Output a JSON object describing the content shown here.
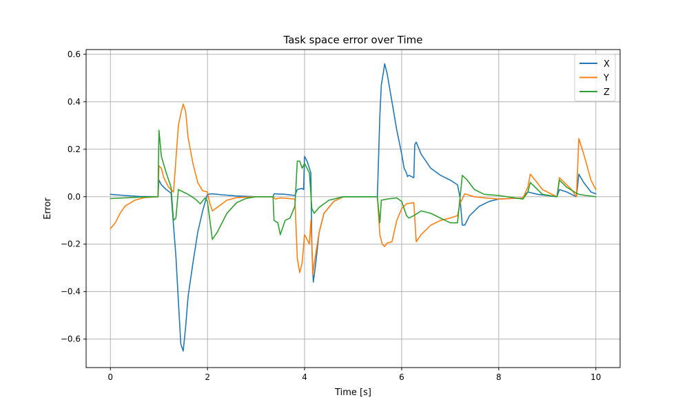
{
  "chart_data": {
    "type": "line",
    "title": "Task space error over Time",
    "xlabel": "Time [s]",
    "ylabel": "Error",
    "xlim": [
      -0.5,
      10.5
    ],
    "ylim": [
      -0.72,
      0.62
    ],
    "xticks": [
      0,
      2,
      4,
      6,
      8,
      10
    ],
    "xtick_labels": [
      "0",
      "2",
      "4",
      "6",
      "8",
      "10"
    ],
    "yticks": [
      -0.6,
      -0.4,
      -0.2,
      0.0,
      0.2,
      0.4,
      0.6
    ],
    "ytick_labels": [
      "−0.6",
      "−0.4",
      "−0.2",
      "0.0",
      "0.2",
      "0.4",
      "0.6"
    ],
    "grid": true,
    "legend_position": "top-right",
    "series": [
      {
        "name": "X",
        "color": "#1f77b4",
        "points": [
          [
            0,
            0.01
          ],
          [
            0.3,
            0.005
          ],
          [
            0.6,
            0.001
          ],
          [
            0.98,
            0.0
          ],
          [
            1.0,
            0.07
          ],
          [
            1.05,
            0.05
          ],
          [
            1.15,
            0.03
          ],
          [
            1.25,
            0.015
          ],
          [
            1.3,
            -0.12
          ],
          [
            1.35,
            -0.25
          ],
          [
            1.4,
            -0.44
          ],
          [
            1.45,
            -0.62
          ],
          [
            1.5,
            -0.65
          ],
          [
            1.55,
            -0.55
          ],
          [
            1.6,
            -0.42
          ],
          [
            1.7,
            -0.28
          ],
          [
            1.8,
            -0.15
          ],
          [
            1.9,
            -0.06
          ],
          [
            1.97,
            -0.01
          ],
          [
            2.0,
            0.01
          ],
          [
            2.1,
            0.012
          ],
          [
            2.3,
            0.008
          ],
          [
            2.6,
            0.003
          ],
          [
            3.0,
            0.0
          ],
          [
            3.35,
            0.0
          ],
          [
            3.37,
            0.012
          ],
          [
            3.6,
            0.01
          ],
          [
            3.8,
            0.005
          ],
          [
            3.85,
            0.03
          ],
          [
            3.95,
            0.035
          ],
          [
            3.98,
            0.03
          ],
          [
            4.0,
            0.17
          ],
          [
            4.05,
            0.15
          ],
          [
            4.1,
            0.12
          ],
          [
            4.13,
            0.1
          ],
          [
            4.15,
            -0.2
          ],
          [
            4.18,
            -0.36
          ],
          [
            4.22,
            -0.3
          ],
          [
            4.3,
            -0.15
          ],
          [
            4.4,
            -0.07
          ],
          [
            4.6,
            -0.02
          ],
          [
            4.8,
            0.0
          ],
          [
            5.5,
            0.0
          ],
          [
            5.53,
            0.2
          ],
          [
            5.55,
            0.34
          ],
          [
            5.58,
            0.47
          ],
          [
            5.62,
            0.52
          ],
          [
            5.65,
            0.56
          ],
          [
            5.7,
            0.52
          ],
          [
            5.8,
            0.4
          ],
          [
            5.9,
            0.28
          ],
          [
            6.0,
            0.18
          ],
          [
            6.05,
            0.12
          ],
          [
            6.1,
            0.1
          ],
          [
            6.12,
            0.085
          ],
          [
            6.15,
            0.09
          ],
          [
            6.25,
            0.08
          ],
          [
            6.27,
            0.22
          ],
          [
            6.3,
            0.23
          ],
          [
            6.4,
            0.18
          ],
          [
            6.6,
            0.12
          ],
          [
            6.8,
            0.09
          ],
          [
            7.0,
            0.07
          ],
          [
            7.15,
            0.05
          ],
          [
            7.2,
            0.0
          ],
          [
            7.25,
            -0.12
          ],
          [
            7.3,
            -0.12
          ],
          [
            7.4,
            -0.08
          ],
          [
            7.6,
            -0.04
          ],
          [
            7.8,
            -0.02
          ],
          [
            8.0,
            -0.01
          ],
          [
            8.5,
            -0.005
          ],
          [
            8.55,
            0.01
          ],
          [
            8.6,
            0.02
          ],
          [
            8.8,
            0.01
          ],
          [
            9.2,
            0.0
          ],
          [
            9.25,
            0.03
          ],
          [
            9.4,
            0.02
          ],
          [
            9.6,
            0.0
          ],
          [
            9.65,
            0.095
          ],
          [
            9.75,
            0.06
          ],
          [
            9.9,
            0.02
          ],
          [
            10.0,
            0.012
          ]
        ]
      },
      {
        "name": "Y",
        "color": "#ff7f0e",
        "points": [
          [
            0,
            -0.135
          ],
          [
            0.1,
            -0.11
          ],
          [
            0.2,
            -0.07
          ],
          [
            0.3,
            -0.04
          ],
          [
            0.5,
            -0.015
          ],
          [
            0.7,
            -0.004
          ],
          [
            0.98,
            0.0
          ],
          [
            1.0,
            0.13
          ],
          [
            1.05,
            0.12
          ],
          [
            1.1,
            0.08
          ],
          [
            1.2,
            0.04
          ],
          [
            1.3,
            0.02
          ],
          [
            1.33,
            0.1
          ],
          [
            1.4,
            0.3
          ],
          [
            1.45,
            0.35
          ],
          [
            1.5,
            0.39
          ],
          [
            1.55,
            0.36
          ],
          [
            1.6,
            0.25
          ],
          [
            1.7,
            0.14
          ],
          [
            1.8,
            0.06
          ],
          [
            1.9,
            0.025
          ],
          [
            2.0,
            0.02
          ],
          [
            2.05,
            -0.03
          ],
          [
            2.1,
            -0.06
          ],
          [
            2.2,
            -0.045
          ],
          [
            2.4,
            -0.015
          ],
          [
            2.6,
            -0.004
          ],
          [
            3.0,
            0.0
          ],
          [
            3.35,
            0.0
          ],
          [
            3.4,
            -0.01
          ],
          [
            3.5,
            -0.005
          ],
          [
            3.8,
            -0.01
          ],
          [
            3.85,
            -0.26
          ],
          [
            3.9,
            -0.32
          ],
          [
            3.95,
            -0.28
          ],
          [
            4.0,
            -0.16
          ],
          [
            4.05,
            -0.18
          ],
          [
            4.1,
            -0.2
          ],
          [
            4.13,
            -0.1
          ],
          [
            4.17,
            -0.33
          ],
          [
            4.2,
            -0.28
          ],
          [
            4.3,
            -0.15
          ],
          [
            4.4,
            -0.07
          ],
          [
            4.6,
            -0.02
          ],
          [
            4.8,
            0.0
          ],
          [
            5.5,
            0.0
          ],
          [
            5.55,
            -0.16
          ],
          [
            5.6,
            -0.2
          ],
          [
            5.65,
            -0.21
          ],
          [
            5.7,
            -0.195
          ],
          [
            5.8,
            -0.19
          ],
          [
            5.9,
            -0.1
          ],
          [
            6.0,
            -0.05
          ],
          [
            6.1,
            -0.03
          ],
          [
            6.25,
            -0.025
          ],
          [
            6.3,
            -0.19
          ],
          [
            6.4,
            -0.16
          ],
          [
            6.6,
            -0.12
          ],
          [
            6.8,
            -0.1
          ],
          [
            7.0,
            -0.09
          ],
          [
            7.15,
            -0.08
          ],
          [
            7.2,
            -0.03
          ],
          [
            7.3,
            0.012
          ],
          [
            7.5,
            0.0
          ],
          [
            7.7,
            -0.005
          ],
          [
            8.0,
            -0.01
          ],
          [
            8.5,
            -0.005
          ],
          [
            8.6,
            0.04
          ],
          [
            8.65,
            0.095
          ],
          [
            8.75,
            0.07
          ],
          [
            8.9,
            0.03
          ],
          [
            9.2,
            0.0
          ],
          [
            9.25,
            0.08
          ],
          [
            9.35,
            0.06
          ],
          [
            9.5,
            0.03
          ],
          [
            9.6,
            0.0
          ],
          [
            9.65,
            0.245
          ],
          [
            9.75,
            0.18
          ],
          [
            9.9,
            0.07
          ],
          [
            10.0,
            0.03
          ]
        ]
      },
      {
        "name": "Z",
        "color": "#2ca02c",
        "points": [
          [
            0,
            -0.008
          ],
          [
            0.3,
            -0.005
          ],
          [
            0.6,
            -0.002
          ],
          [
            0.98,
            0.0
          ],
          [
            1.0,
            0.28
          ],
          [
            1.05,
            0.17
          ],
          [
            1.15,
            0.1
          ],
          [
            1.25,
            0.04
          ],
          [
            1.3,
            -0.1
          ],
          [
            1.35,
            -0.09
          ],
          [
            1.4,
            0.03
          ],
          [
            1.5,
            0.02
          ],
          [
            1.6,
            0.01
          ],
          [
            1.75,
            -0.01
          ],
          [
            1.85,
            -0.03
          ],
          [
            1.95,
            -0.005
          ],
          [
            2.0,
            -0.02
          ],
          [
            2.1,
            -0.18
          ],
          [
            2.2,
            -0.15
          ],
          [
            2.4,
            -0.07
          ],
          [
            2.6,
            -0.025
          ],
          [
            2.8,
            -0.007
          ],
          [
            3.0,
            0.0
          ],
          [
            3.35,
            0.0
          ],
          [
            3.37,
            -0.1
          ],
          [
            3.45,
            -0.11
          ],
          [
            3.5,
            -0.16
          ],
          [
            3.6,
            -0.1
          ],
          [
            3.7,
            -0.09
          ],
          [
            3.8,
            -0.04
          ],
          [
            3.85,
            0.15
          ],
          [
            3.9,
            0.15
          ],
          [
            3.95,
            0.12
          ],
          [
            4.0,
            0.14
          ],
          [
            4.05,
            0.12
          ],
          [
            4.1,
            0.1
          ],
          [
            4.15,
            -0.05
          ],
          [
            4.2,
            -0.07
          ],
          [
            4.3,
            -0.045
          ],
          [
            4.5,
            -0.015
          ],
          [
            4.8,
            0.0
          ],
          [
            5.5,
            0.0
          ],
          [
            5.55,
            -0.11
          ],
          [
            5.58,
            -0.015
          ],
          [
            5.7,
            -0.01
          ],
          [
            5.9,
            -0.005
          ],
          [
            6.0,
            -0.02
          ],
          [
            6.05,
            -0.05
          ],
          [
            6.1,
            -0.08
          ],
          [
            6.15,
            -0.09
          ],
          [
            6.25,
            -0.08
          ],
          [
            6.4,
            -0.06
          ],
          [
            6.6,
            -0.07
          ],
          [
            6.8,
            -0.09
          ],
          [
            7.0,
            -0.11
          ],
          [
            7.15,
            -0.11
          ],
          [
            7.25,
            0.09
          ],
          [
            7.35,
            0.07
          ],
          [
            7.5,
            0.03
          ],
          [
            7.7,
            0.01
          ],
          [
            8.0,
            0.005
          ],
          [
            8.5,
            -0.01
          ],
          [
            8.6,
            0.02
          ],
          [
            8.65,
            0.06
          ],
          [
            8.75,
            0.04
          ],
          [
            8.9,
            0.01
          ],
          [
            9.2,
            0.0
          ],
          [
            9.25,
            0.07
          ],
          [
            9.4,
            0.04
          ],
          [
            9.6,
            0.015
          ],
          [
            9.65,
            0.01
          ],
          [
            9.8,
            0.005
          ],
          [
            10.0,
            0.0
          ]
        ]
      }
    ]
  }
}
